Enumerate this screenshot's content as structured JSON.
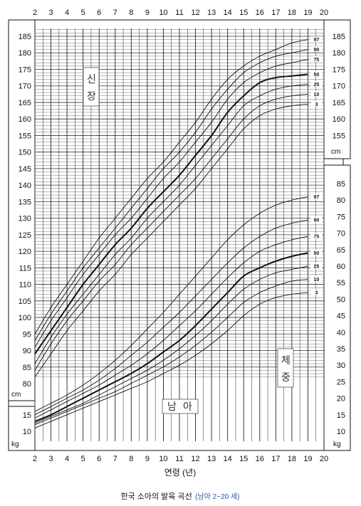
{
  "chart_data": {
    "type": "line",
    "title": "한국 소아의 발육 곡선",
    "subtitle": "(남아 2~20 세)",
    "xlabel": "연령 (년)",
    "x": [
      2,
      3,
      4,
      5,
      6,
      7,
      8,
      9,
      10,
      11,
      12,
      13,
      14,
      15,
      16,
      17,
      18,
      19,
      20
    ],
    "x_tick_labels": [
      "2",
      "3",
      "4",
      "5",
      "6",
      "7",
      "8",
      "9",
      "10",
      "11",
      "12",
      "13",
      "14",
      "15",
      "16",
      "17",
      "18",
      "19",
      "20"
    ],
    "xlim": [
      2,
      20
    ],
    "grid": true,
    "height": {
      "label_chars": [
        "신",
        "장"
      ],
      "unit": "cm",
      "ylim": [
        80,
        185
      ],
      "left_ticks": [
        "80",
        "85",
        "90",
        "95",
        "100",
        "105",
        "110",
        "115",
        "120",
        "125",
        "130",
        "135",
        "140",
        "145",
        "150",
        "155",
        "160",
        "165",
        "170",
        "175",
        "180",
        "185"
      ],
      "right_ticks": [
        "155",
        "160",
        "165",
        "170",
        "175",
        "180",
        "185"
      ],
      "series": [
        {
          "name": "97",
          "x": [
            2,
            3,
            4,
            5,
            6,
            7,
            8,
            9,
            10,
            11,
            12,
            13,
            14,
            15,
            16,
            17,
            18,
            19
          ],
          "values": [
            95,
            103,
            110,
            117,
            124,
            130,
            136,
            142,
            147,
            153,
            159,
            166,
            172,
            176,
            179,
            181,
            183,
            184
          ]
        },
        {
          "name": "90",
          "x": [
            2,
            3,
            4,
            5,
            6,
            7,
            8,
            9,
            10,
            11,
            12,
            13,
            14,
            15,
            16,
            17,
            18,
            19
          ],
          "values": [
            93,
            101,
            108,
            115,
            121,
            127,
            133,
            139,
            145,
            150,
            156,
            163,
            169,
            174,
            177,
            179,
            180,
            181
          ]
        },
        {
          "name": "75",
          "x": [
            2,
            3,
            4,
            5,
            6,
            7,
            8,
            9,
            10,
            11,
            12,
            13,
            14,
            15,
            16,
            17,
            18,
            19
          ],
          "values": [
            91,
            99,
            106,
            113,
            119,
            125,
            130,
            136,
            142,
            147,
            153,
            159,
            166,
            171,
            174,
            176,
            177,
            178
          ]
        },
        {
          "name": "50",
          "x": [
            2,
            3,
            4,
            5,
            6,
            7,
            8,
            9,
            10,
            11,
            12,
            13,
            14,
            15,
            16,
            17,
            18,
            19
          ],
          "values": [
            89,
            96,
            103,
            110,
            116,
            122,
            127,
            133,
            138,
            143,
            149,
            155,
            162,
            167,
            171,
            172.5,
            173,
            173.5
          ]
        },
        {
          "name": "25",
          "x": [
            2,
            3,
            4,
            5,
            6,
            7,
            8,
            9,
            10,
            11,
            12,
            13,
            14,
            15,
            16,
            17,
            18,
            19
          ],
          "values": [
            86,
            94,
            101,
            107,
            113,
            119,
            124,
            130,
            135,
            140,
            146,
            152,
            158,
            164,
            167,
            169,
            170,
            170.5
          ]
        },
        {
          "name": "10",
          "x": [
            2,
            3,
            4,
            5,
            6,
            7,
            8,
            9,
            10,
            11,
            12,
            13,
            14,
            15,
            16,
            17,
            18,
            19
          ],
          "values": [
            84,
            92,
            99,
            105,
            111,
            116,
            122,
            127,
            132,
            137,
            142,
            148,
            154,
            160,
            164,
            166,
            167,
            167.5
          ]
        },
        {
          "name": "3",
          "x": [
            2,
            3,
            4,
            5,
            6,
            7,
            8,
            9,
            10,
            11,
            12,
            13,
            14,
            15,
            16,
            17,
            18,
            19
          ],
          "values": [
            82,
            89,
            96,
            102,
            108,
            113,
            119,
            124,
            129,
            134,
            139,
            145,
            151,
            157,
            161,
            163,
            164,
            164.5
          ]
        }
      ]
    },
    "weight": {
      "label_chars": [
        "체",
        "중"
      ],
      "unit": "kg",
      "ylim": [
        10,
        88
      ],
      "left_ticks": [
        "10",
        "15"
      ],
      "right_ticks": [
        "10",
        "15",
        "20",
        "25",
        "30",
        "35",
        "40",
        "45",
        "50",
        "55",
        "60",
        "65",
        "70",
        "75",
        "80",
        "85"
      ],
      "series": [
        {
          "name": "97",
          "x": [
            2,
            3,
            4,
            5,
            6,
            7,
            8,
            9,
            10,
            11,
            12,
            13,
            14,
            15,
            16,
            17,
            18,
            19
          ],
          "values": [
            16,
            18.5,
            21,
            24,
            27.5,
            31.5,
            36,
            41,
            46,
            51.5,
            57,
            62.5,
            68,
            72.5,
            76,
            78.5,
            80,
            81
          ]
        },
        {
          "name": "90",
          "x": [
            2,
            3,
            4,
            5,
            6,
            7,
            8,
            9,
            10,
            11,
            12,
            13,
            14,
            15,
            16,
            17,
            18,
            19
          ],
          "values": [
            15,
            17.5,
            20,
            22.5,
            25.5,
            29,
            33,
            37,
            41.5,
            46,
            51,
            56,
            61,
            65.5,
            69,
            71.5,
            73,
            74
          ]
        },
        {
          "name": "75",
          "x": [
            2,
            3,
            4,
            5,
            6,
            7,
            8,
            9,
            10,
            11,
            12,
            13,
            14,
            15,
            16,
            17,
            18,
            19
          ],
          "values": [
            14,
            16.5,
            19,
            21.5,
            24,
            27,
            30,
            33.5,
            37.5,
            42,
            46.5,
            51.5,
            56.5,
            61,
            64.5,
            66.5,
            68,
            69
          ]
        },
        {
          "name": "50",
          "x": [
            2,
            3,
            4,
            5,
            6,
            7,
            8,
            9,
            10,
            11,
            12,
            13,
            14,
            15,
            16,
            17,
            18,
            19
          ],
          "values": [
            13,
            15,
            17.5,
            20,
            22.5,
            25,
            27.5,
            30.5,
            34,
            37.5,
            42,
            47,
            52,
            57,
            59.5,
            61.5,
            63,
            64
          ]
        },
        {
          "name": "25",
          "x": [
            2,
            3,
            4,
            5,
            6,
            7,
            8,
            9,
            10,
            11,
            12,
            13,
            14,
            15,
            16,
            17,
            18,
            19
          ],
          "values": [
            12.5,
            14.5,
            16.5,
            18.5,
            21,
            23.5,
            26,
            28.5,
            31.5,
            35,
            39,
            43.5,
            48.5,
            53,
            56,
            58,
            59,
            60
          ]
        },
        {
          "name": "10",
          "x": [
            2,
            3,
            4,
            5,
            6,
            7,
            8,
            9,
            10,
            11,
            12,
            13,
            14,
            15,
            16,
            17,
            18,
            19
          ],
          "values": [
            12,
            14,
            16,
            18,
            20,
            22,
            24.5,
            27,
            29.5,
            32.5,
            36,
            40,
            44.5,
            49,
            52,
            54,
            55.5,
            56
          ]
        },
        {
          "name": "3",
          "x": [
            2,
            3,
            4,
            5,
            6,
            7,
            8,
            9,
            10,
            11,
            12,
            13,
            14,
            15,
            16,
            17,
            18,
            19
          ],
          "values": [
            11,
            13,
            15,
            17,
            19,
            21,
            23,
            25,
            27.5,
            30,
            33,
            36.5,
            40.5,
            45,
            48.5,
            50.5,
            51.5,
            52
          ]
        }
      ]
    },
    "middle_label_chars": [
      "남",
      "아"
    ]
  }
}
